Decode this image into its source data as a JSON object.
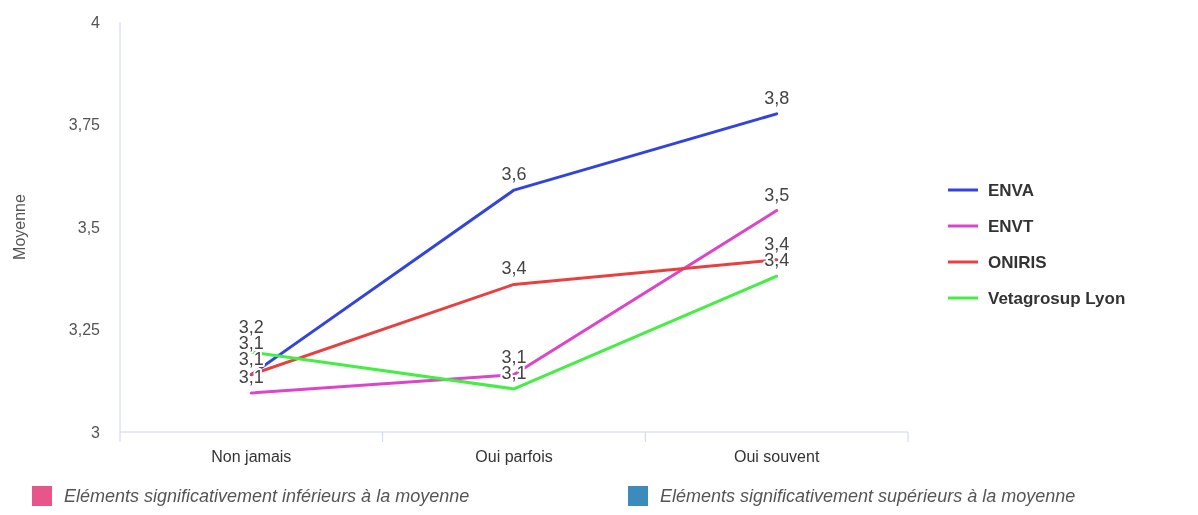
{
  "chart_data": {
    "type": "line",
    "ylabel": "Moyenne",
    "categories": [
      "Non jamais",
      "Oui parfois",
      "Oui souvent"
    ],
    "series": [
      {
        "name": "ENVA",
        "color": "#3344dd",
        "values": [
          3.14,
          3.59,
          3.776
        ],
        "value_labels": [
          "3,1",
          "3,6",
          "3,8"
        ]
      },
      {
        "name": "ENVT",
        "color": "#dd44cc",
        "values": [
          3.095,
          3.14,
          3.54
        ],
        "value_labels": [
          "3,1",
          "3,1",
          "3,5"
        ]
      },
      {
        "name": "ONIRIS",
        "color": "#e84040",
        "values": [
          3.14,
          3.36,
          3.42
        ],
        "value_labels": [
          "3,1",
          "3,4",
          "3,4"
        ]
      },
      {
        "name": "Vetagrosup Lyon",
        "color": "#44ee44",
        "values": [
          3.195,
          3.105,
          3.38
        ],
        "value_labels": [
          "3,2",
          "3,1",
          "3,4"
        ]
      }
    ],
    "ylim": [
      3,
      4
    ],
    "yticks": [
      3,
      {
        "value": 3.25,
        "label": "3,25"
      },
      {
        "value": 3.5,
        "label": "3,5"
      },
      {
        "value": 3.75,
        "label": "3,75"
      },
      4
    ],
    "grid": false,
    "legend": "right",
    "marker": "none",
    "line_style": "solid",
    "annotations": [
      "Eléments significativement inférieurs à la moyenne",
      "Eléments significativement supérieurs à la moyenne"
    ]
  }
}
